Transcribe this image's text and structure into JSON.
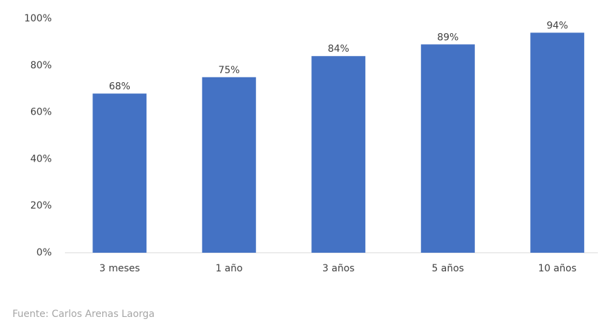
{
  "chart_data": {
    "type": "bar",
    "categories": [
      "3 meses",
      "1 año",
      "3 años",
      "5 años",
      "10 años"
    ],
    "values": [
      68,
      75,
      84,
      89,
      94
    ],
    "value_labels": [
      "68%",
      "75%",
      "84%",
      "89%",
      "94%"
    ],
    "color": "#4472c4",
    "ylim": [
      0,
      100
    ],
    "yticks": [
      {
        "value": 0,
        "label": "0%"
      },
      {
        "value": 20,
        "label": "20%"
      },
      {
        "value": 40,
        "label": "40%"
      },
      {
        "value": 60,
        "label": "60%"
      },
      {
        "value": 80,
        "label": "80%"
      },
      {
        "value": 100,
        "label": "100%"
      }
    ],
    "grid": false,
    "source": "Fuente: Carlos Arenas Laorga"
  }
}
